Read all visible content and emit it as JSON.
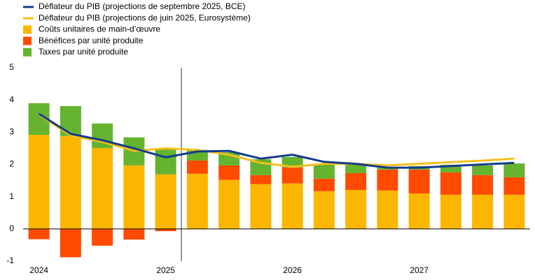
{
  "chart_data": {
    "type": "bar",
    "stacked": true,
    "legend": "top-left",
    "categories": [
      "2024",
      null,
      null,
      null,
      "2025",
      null,
      null,
      null,
      "2026",
      null,
      null,
      null,
      "2027",
      null,
      null,
      null
    ],
    "ylim": [
      -1,
      5
    ],
    "yticks": [
      -1,
      0,
      1,
      2,
      3,
      4,
      5
    ],
    "grid": false,
    "series": [
      {
        "name": "Déflateur du PIB (projections de septembre 2025, BCE)",
        "type": "line",
        "color": "#143c8c",
        "values": [
          3.57,
          2.95,
          2.75,
          2.5,
          2.22,
          2.4,
          2.42,
          2.18,
          2.3,
          2.08,
          2.02,
          1.9,
          1.9,
          1.95,
          2.0,
          2.05
        ]
      },
      {
        "name": "Déflateur du PIB (projections de juin 2025, Eurosystème)",
        "type": "line",
        "color": "#f5c01e",
        "values": [
          3.55,
          2.9,
          2.7,
          2.42,
          2.5,
          2.45,
          2.3,
          2.05,
          1.93,
          2.02,
          2.02,
          1.97,
          2.02,
          2.07,
          2.12,
          2.18
        ]
      },
      {
        "name": "Coûts unitaires de main-d’œuvre",
        "type": "bar",
        "color": "#fbb600",
        "values": [
          2.92,
          2.88,
          2.51,
          1.97,
          1.69,
          1.71,
          1.52,
          1.39,
          1.41,
          1.17,
          1.21,
          1.19,
          1.1,
          1.06,
          1.06,
          1.06
        ]
      },
      {
        "name": "Bénéfices par unité produite",
        "type": "bar",
        "color": "#ff4b00",
        "values": [
          -0.32,
          -0.88,
          -0.52,
          -0.33,
          -0.07,
          0.41,
          0.45,
          0.28,
          0.49,
          0.39,
          0.52,
          0.65,
          0.74,
          0.69,
          0.61,
          0.54
        ]
      },
      {
        "name": "Taxes par unité produite",
        "type": "bar",
        "color": "#65b32e",
        "values": [
          0.98,
          0.93,
          0.76,
          0.87,
          0.8,
          0.33,
          0.41,
          0.49,
          0.33,
          0.43,
          0.26,
          0.06,
          0.11,
          0.24,
          0.3,
          0.43
        ]
      }
    ]
  }
}
